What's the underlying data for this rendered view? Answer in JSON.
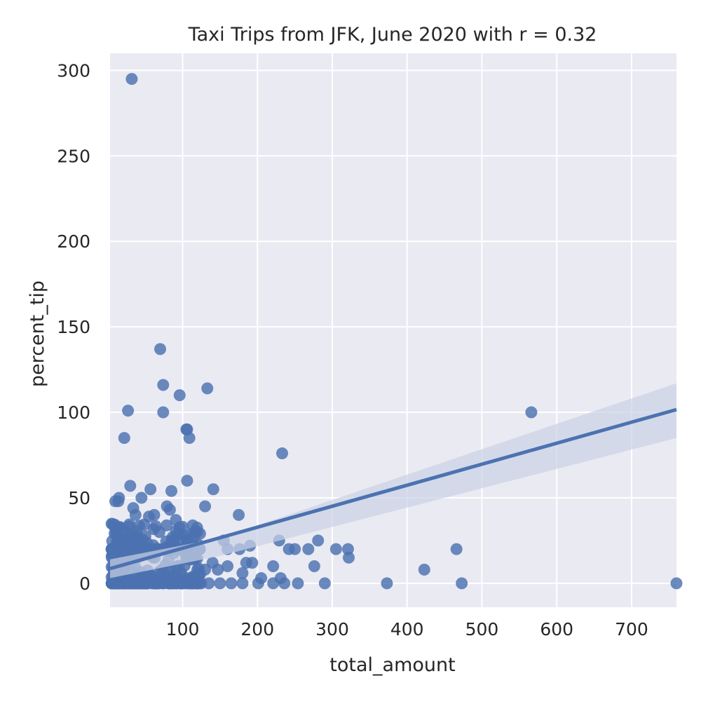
{
  "chart_data": {
    "type": "scatter",
    "title": "Taxi Trips from JFK, June 2020 with r = 0.32",
    "xlabel": "total_amount",
    "ylabel": "percent_tip",
    "xlim": [
      3,
      760
    ],
    "ylim": [
      -14,
      310
    ],
    "xticks": [
      100,
      200,
      300,
      400,
      500,
      600,
      700
    ],
    "yticks": [
      0,
      50,
      100,
      150,
      200,
      250,
      300
    ],
    "grid": true,
    "colors": {
      "background": "#eaeaf2",
      "grid": "#ffffff",
      "points": "#4c72b0",
      "band": "#c9d2e6"
    },
    "regression": {
      "line": [
        [
          3,
          8.6
        ],
        [
          760,
          101.6
        ]
      ],
      "ci_upper": [
        [
          3,
          14.0
        ],
        [
          150,
          26.5
        ],
        [
          760,
          117.0
        ]
      ],
      "ci_lower": [
        [
          3,
          3.0
        ],
        [
          150,
          16.0
        ],
        [
          760,
          85.0
        ]
      ]
    },
    "series": [
      {
        "points": [
          [
            32,
            295
          ],
          [
            70,
            137
          ],
          [
            74,
            116
          ],
          [
            133,
            114
          ],
          [
            96,
            110
          ],
          [
            27,
            101
          ],
          [
            74,
            100
          ],
          [
            566,
            100
          ],
          [
            105,
            90
          ],
          [
            106,
            90
          ],
          [
            22,
            85
          ],
          [
            109,
            85
          ],
          [
            233,
            76
          ],
          [
            106,
            60
          ],
          [
            30,
            57
          ],
          [
            57,
            55
          ],
          [
            85,
            54
          ],
          [
            141,
            55
          ],
          [
            15,
            50
          ],
          [
            45,
            50
          ],
          [
            130,
            45
          ],
          [
            79,
            45
          ],
          [
            34,
            44
          ],
          [
            83,
            43
          ],
          [
            10,
            48
          ],
          [
            14,
            48
          ],
          [
            175,
            40
          ],
          [
            37,
            40
          ],
          [
            62,
            40
          ],
          [
            55,
            39
          ],
          [
            91,
            37
          ],
          [
            100,
            33
          ],
          [
            116,
            30
          ],
          [
            69,
            30
          ],
          [
            155,
            25
          ],
          [
            229,
            25
          ],
          [
            281,
            25
          ],
          [
            190,
            22
          ],
          [
            305,
            20
          ],
          [
            321,
            20
          ],
          [
            466,
            20
          ],
          [
            242,
            20
          ],
          [
            250,
            20
          ],
          [
            268,
            20
          ],
          [
            176,
            20
          ],
          [
            160,
            20
          ],
          [
            322,
            15
          ],
          [
            276,
            10
          ],
          [
            221,
            10
          ],
          [
            185,
            12
          ],
          [
            193,
            12
          ],
          [
            140,
            12
          ],
          [
            160,
            10
          ],
          [
            423,
            8
          ],
          [
            147,
            8
          ],
          [
            130,
            8
          ],
          [
            180,
            6
          ],
          [
            205,
            3
          ],
          [
            231,
            3
          ],
          [
            201,
            0
          ],
          [
            221,
            0
          ],
          [
            236,
            0
          ],
          [
            254,
            0
          ],
          [
            290,
            0
          ],
          [
            373,
            0
          ],
          [
            473,
            0
          ],
          [
            760,
            0
          ],
          [
            180,
            0
          ],
          [
            165,
            0
          ],
          [
            150,
            0
          ],
          [
            135,
            0
          ],
          [
            120,
            0
          ]
        ],
        "cluster": {
          "xmin": 5,
          "xmax": 125,
          "ymin": 0,
          "ymax": 35,
          "count": 420,
          "seed": 7
        }
      }
    ]
  }
}
